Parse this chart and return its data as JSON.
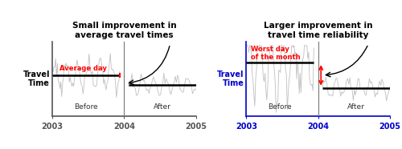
{
  "chart1": {
    "title": "Small improvement in\naverage travel times",
    "ylabel": "Travel\nTime",
    "xlabel_before": "Before",
    "xlabel_after": "After",
    "xtick_labels": [
      "2003",
      "2004",
      "2005"
    ],
    "avg_label": "Average day",
    "avg_before": 0.55,
    "avg_after": 0.42,
    "line_color": "#c0c0c0",
    "avg_color": "#000000",
    "label_color": "#ff0000",
    "axis_color": "#555555",
    "ylabel_color": "#000000",
    "n_before": 80,
    "n_after": 60,
    "amplitude_before": 0.18,
    "amplitude_after": 0.1,
    "seed_before": 1,
    "seed_after": 2
  },
  "chart2": {
    "title": "Larger improvement in\ntravel time reliability",
    "ylabel": "Travel\nTime",
    "xlabel_before": "Before",
    "xlabel_after": "After",
    "xtick_labels": [
      "2003",
      "2004",
      "2005"
    ],
    "avg_label": "Worst day\nof the month",
    "avg_before": 0.72,
    "avg_after": 0.38,
    "line_color": "#c0c0c0",
    "avg_color": "#000000",
    "label_color": "#ff0000",
    "axis_color": "#0000cc",
    "ylabel_color": "#0000cc",
    "n_before": 80,
    "n_after": 60,
    "amplitude_before": 0.4,
    "amplitude_after": 0.12,
    "seed_before": 3,
    "seed_after": 4
  },
  "bg_color": "#ffffff"
}
